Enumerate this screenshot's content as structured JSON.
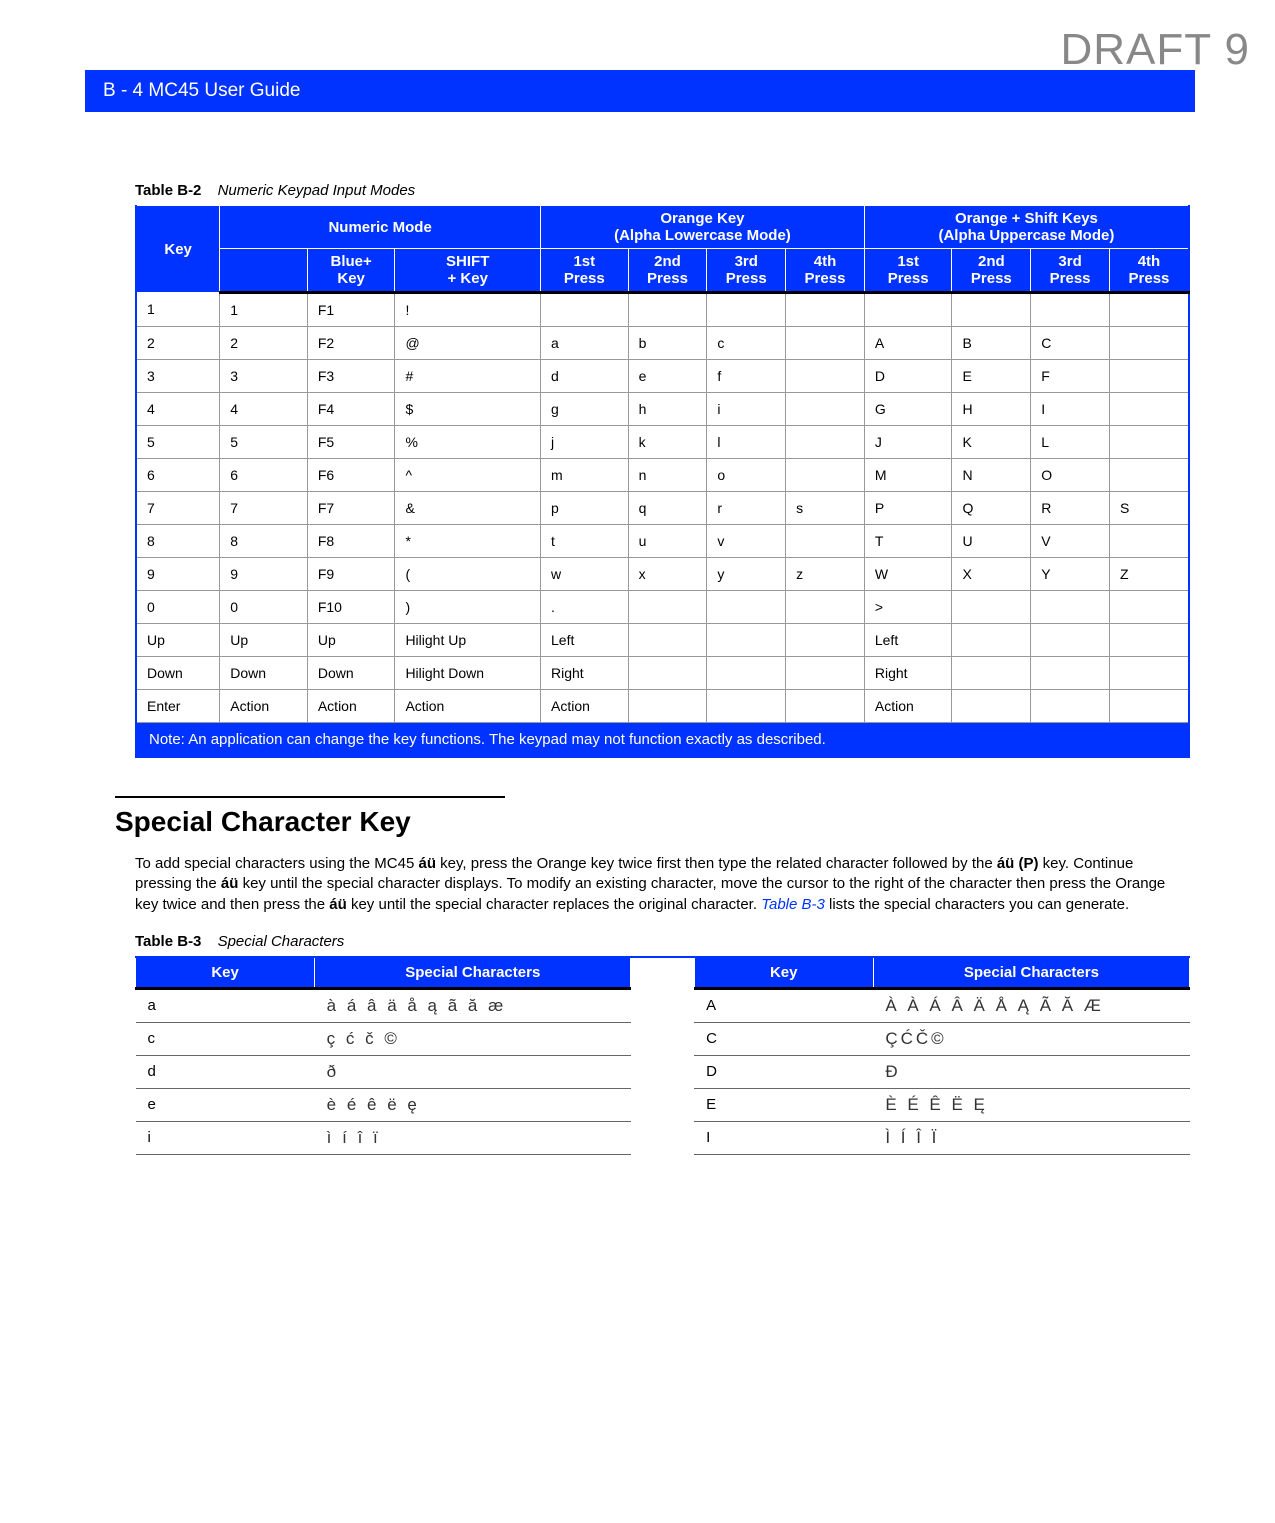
{
  "draft_label": "DRAFT 9",
  "header_bar": "B - 4    MC45 User Guide",
  "table_b2": {
    "id": "Table B-2",
    "title": "Numeric Keypad Input Modes",
    "group_headers": {
      "key": "Key",
      "numeric": "Numeric Mode",
      "orange": "Orange Key\n(Alpha Lowercase Mode)",
      "orange_shift": "Orange + Shift Keys\n(Alpha Uppercase Mode)"
    },
    "sub_headers": [
      "",
      "Blue+\nKey",
      "SHIFT\n+ Key",
      "1st\nPress",
      "2nd\nPress",
      "3rd\nPress",
      "4th\nPress",
      "1st\nPress",
      "2nd\nPress",
      "3rd\nPress",
      "4th\nPress"
    ],
    "rows": [
      [
        "1",
        "1",
        "F1",
        "!",
        "",
        "",
        "",
        "",
        "",
        "",
        "",
        ""
      ],
      [
        "2",
        "2",
        "F2",
        "@",
        "a",
        "b",
        "c",
        "",
        "A",
        "B",
        "C",
        ""
      ],
      [
        "3",
        "3",
        "F3",
        "#",
        "d",
        "e",
        "f",
        "",
        "D",
        "E",
        "F",
        ""
      ],
      [
        "4",
        "4",
        "F4",
        "$",
        "g",
        "h",
        "i",
        "",
        "G",
        "H",
        "I",
        ""
      ],
      [
        "5",
        "5",
        "F5",
        "%",
        "j",
        "k",
        "l",
        "",
        "J",
        "K",
        "L",
        ""
      ],
      [
        "6",
        "6",
        "F6",
        "^",
        "m",
        "n",
        "o",
        "",
        "M",
        "N",
        "O",
        ""
      ],
      [
        "7",
        "7",
        "F7",
        "&",
        "p",
        "q",
        "r",
        "s",
        "P",
        "Q",
        "R",
        "S"
      ],
      [
        "8",
        "8",
        "F8",
        "*",
        "t",
        "u",
        "v",
        "",
        "T",
        "U",
        "V",
        ""
      ],
      [
        "9",
        "9",
        "F9",
        "(",
        "w",
        "x",
        "y",
        "z",
        "W",
        "X",
        "Y",
        "Z"
      ],
      [
        "0",
        "0",
        "F10",
        ")",
        ".",
        "",
        "",
        "",
        ">",
        "",
        "",
        ""
      ],
      [
        "Up",
        "Up",
        "Up",
        "Hilight Up",
        "Left",
        "",
        "",
        "",
        "Left",
        "",
        "",
        ""
      ],
      [
        "Down",
        "Down",
        "Down",
        "Hilight Down",
        "Right",
        "",
        "",
        "",
        "Right",
        "",
        "",
        ""
      ],
      [
        "Enter",
        "Action",
        "Action",
        "Action",
        "Action",
        "",
        "",
        "",
        "Action",
        "",
        "",
        ""
      ]
    ],
    "note": "Note: An application can change the key functions. The keypad may not function exactly as described."
  },
  "section_title": "Special Character Key",
  "body_text": {
    "p1a": "To add special characters using the MC45 ",
    "p1b": " key, press the Orange key twice first then type the related character followed by the ",
    "p1c": " key. Continue pressing the ",
    "p1d": " key until the special character displays. To modify an existing character, move the cursor to the right of the character then press the Orange key twice and then press the ",
    "p1e": " key until the special character replaces the original character. ",
    "p1f": " lists the special characters you can generate.",
    "bold_au": "áü",
    "bold_aup": "áü (P)",
    "link": "Table B-3"
  },
  "table_b3": {
    "id": "Table B-3",
    "title": "Special Characters",
    "headers": [
      "Key",
      "Special Characters",
      "Key",
      "Special Characters"
    ],
    "rows": [
      {
        "k1": "a",
        "v1": "à á â ä å ą ã ă æ",
        "k2": "A",
        "v2": "À À Á Â Ä Å Ą Ã Ă Æ"
      },
      {
        "k1": "c",
        "v1": "ç ć č ©",
        "k2": "C",
        "v2": "ÇĆČ©"
      },
      {
        "k1": "d",
        "v1": "ð",
        "k2": "D",
        "v2": "Đ"
      },
      {
        "k1": "e",
        "v1": "è é ê ë ę",
        "k2": "E",
        "v2": "È É Ê Ë Ę"
      },
      {
        "k1": "i",
        "v1": "ì í î ï",
        "k2": "I",
        "v2": "Ì Í Î Ï"
      }
    ]
  }
}
